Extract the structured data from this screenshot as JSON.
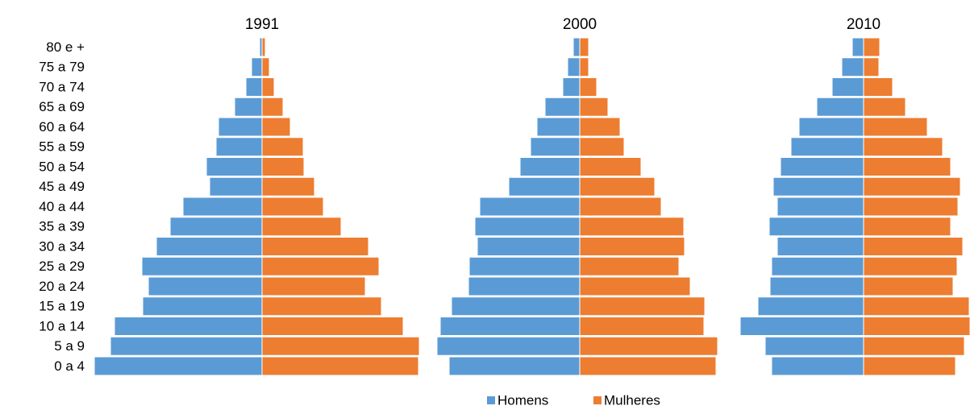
{
  "chart_data": {
    "type": "pyramid",
    "categories": [
      "80 e +",
      "75 a 79",
      "70 a 74",
      "65 a 69",
      "60 a 64",
      "55 a 59",
      "50 a 54",
      "45 a 49",
      "40 a 44",
      "35 a 39",
      "30 a 34",
      "25 a 29",
      "20 a 24",
      "15 a 19",
      "10 a 14",
      "5 a 9",
      "0 a 4"
    ],
    "series": [
      {
        "name": "Homens",
        "color": "#5b9bd5"
      },
      {
        "name": "Mulheres",
        "color": "#ed7d31"
      }
    ],
    "xlim": [
      0,
      220
    ],
    "panels": [
      {
        "title": "1991",
        "values": [
          [
            3,
            13,
            20,
            34,
            54,
            57,
            69,
            65,
            98,
            114,
            131,
            149,
            141,
            148,
            183,
            188,
            208
          ],
          [
            4,
            9,
            15,
            26,
            35,
            51,
            52,
            65,
            76,
            98,
            132,
            145,
            128,
            148,
            175,
            195,
            194
          ]
        ]
      },
      {
        "title": "2000",
        "values": [
          [
            8,
            15,
            21,
            43,
            53,
            61,
            74,
            88,
            124,
            130,
            127,
            137,
            138,
            159,
            173,
            177,
            162
          ],
          [
            11,
            11,
            21,
            35,
            50,
            55,
            76,
            93,
            101,
            129,
            130,
            123,
            137,
            155,
            154,
            171,
            169
          ]
        ]
      },
      {
        "title": "2010",
        "values": [
          [
            14,
            27,
            39,
            58,
            80,
            90,
            103,
            112,
            107,
            117,
            107,
            114,
            116,
            131,
            153,
            122,
            114
          ],
          [
            20,
            19,
            36,
            52,
            79,
            98,
            108,
            120,
            117,
            108,
            123,
            116,
            111,
            131,
            132,
            125,
            114
          ]
        ]
      }
    ]
  }
}
